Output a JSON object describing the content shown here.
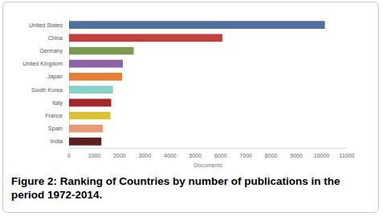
{
  "chart_data": {
    "type": "bar",
    "orientation": "horizontal",
    "caption": "Figure 2: Ranking of Countries by number of publications in the period 1972-2014.",
    "x_label": "Documents",
    "categories": [
      "United States",
      "China",
      "Germany",
      "United Kingdom",
      "Japan",
      "South Korea",
      "Italy",
      "France",
      "Spain",
      "India"
    ],
    "values": [
      10130,
      6070,
      2560,
      2130,
      2100,
      1740,
      1670,
      1640,
      1340,
      1280
    ],
    "colors": [
      "#4f709a",
      "#c1403e",
      "#7d9a52",
      "#8b62a6",
      "#e57f36",
      "#86d2c8",
      "#a5282a",
      "#d9c235",
      "#e89b79",
      "#5c1f1f"
    ],
    "xlim": [
      0,
      11000
    ],
    "xticks": [
      0,
      1000,
      2000,
      3000,
      4000,
      5000,
      6000,
      7000,
      8000,
      9000,
      10000,
      11000
    ],
    "grid": false
  }
}
